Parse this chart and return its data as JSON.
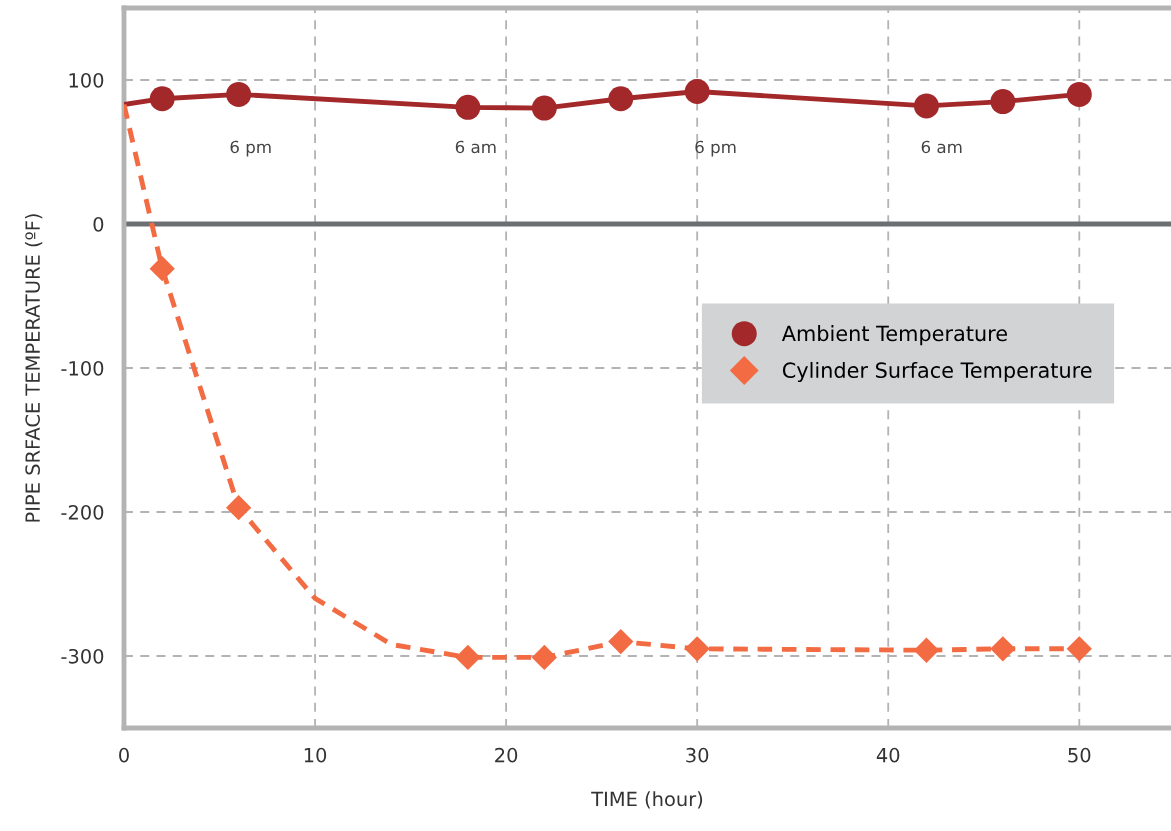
{
  "chart_data": {
    "type": "line",
    "xlabel": "TIME (hour)",
    "ylabel": "PIPE SRFACE TEMPERATURE (ºF)",
    "xlim": [
      0,
      54.8
    ],
    "ylim": [
      -350,
      150
    ],
    "xticks": [
      0,
      10,
      20,
      30,
      40,
      50
    ],
    "yticks": [
      -300,
      -200,
      -100,
      0,
      100
    ],
    "grid": true,
    "legend": "right",
    "series": [
      {
        "color": "#a3282a",
        "line_style": "solid",
        "marker": "none",
        "x": [
          0,
          2,
          6,
          18,
          22,
          26,
          30,
          42,
          46,
          50
        ],
        "values": [
          83,
          87,
          90,
          81,
          80.5,
          87,
          92,
          82,
          85,
          90
        ]
      },
      {
        "color": "#f26b43",
        "line_style": "dashed",
        "marker": "none",
        "x": [
          0,
          2,
          6,
          10,
          14,
          18,
          22,
          26,
          30,
          42,
          46,
          50
        ],
        "values": [
          83,
          -31,
          -197,
          -260,
          -292,
          -301,
          -301,
          -290,
          -295,
          -296,
          -295,
          -295
        ]
      },
      {
        "type": "scatter",
        "name": "Ambient Temperature",
        "color": "#a3282a",
        "marker": "circle",
        "x": [
          2,
          6,
          18,
          22,
          26,
          30,
          42,
          46,
          50
        ],
        "values": [
          87,
          90,
          81,
          80.5,
          87,
          92,
          82,
          85,
          90
        ]
      },
      {
        "type": "scatter",
        "name": "Cylinder Surface Temperature",
        "color": "#f26b43",
        "marker": "diamond",
        "x": [
          2,
          6,
          18,
          22,
          26,
          30,
          42,
          46,
          50
        ],
        "values": [
          -31,
          -197,
          -301,
          -301,
          -290,
          -295,
          -296,
          -295,
          -295
        ]
      }
    ],
    "ref_lines": [
      {
        "axis": "y",
        "value": 0,
        "color": "#6d6e71"
      }
    ],
    "annotations": [
      "6 pm",
      "6 am",
      "6 pm",
      "6 am"
    ]
  }
}
